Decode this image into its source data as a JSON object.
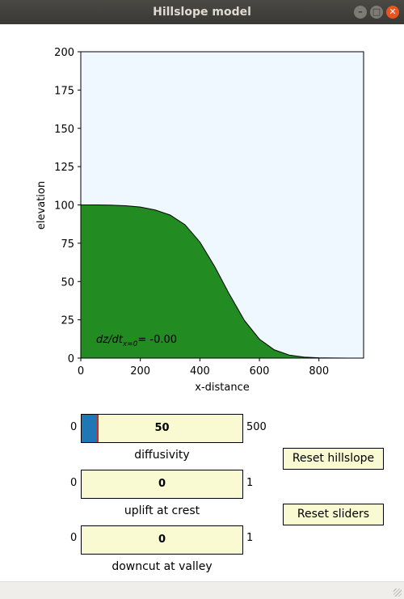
{
  "window": {
    "title": "Hillslope model",
    "controls": {
      "minimize": "–",
      "maximize": "□",
      "close": "✕"
    }
  },
  "chart_data": {
    "type": "area",
    "xlabel": "x-distance",
    "ylabel": "elevation",
    "xlim": [
      0,
      950
    ],
    "ylim": [
      0,
      200
    ],
    "xticks": [
      0,
      200,
      400,
      600,
      800
    ],
    "yticks": [
      0,
      25,
      50,
      75,
      100,
      125,
      150,
      175,
      200
    ],
    "x": [
      0,
      50,
      100,
      150,
      200,
      250,
      300,
      350,
      400,
      450,
      500,
      550,
      600,
      650,
      700,
      750,
      800,
      850,
      900,
      950
    ],
    "y": [
      100,
      100,
      99.9,
      99.5,
      98.6,
      96.7,
      93.4,
      87.1,
      75.8,
      59.7,
      41.4,
      24.5,
      12.4,
      5.4,
      2.0,
      0.65,
      0.18,
      0.04,
      0.01,
      0
    ],
    "fill_color": "#228b22",
    "background_color": "#f0f8ff",
    "grid": false,
    "annotation": {
      "prefix": "dz/dt",
      "subscript": "x=0",
      "value": "= -0.00"
    }
  },
  "sliders": [
    {
      "label": "diffusivity",
      "min": "0",
      "max": "500",
      "value": "50",
      "fraction": 0.1
    },
    {
      "label": "uplift at crest",
      "min": "0",
      "max": "1",
      "value": "0",
      "fraction": 0
    },
    {
      "label": "downcut at valley",
      "min": "0",
      "max": "1",
      "value": "0",
      "fraction": 0
    }
  ],
  "buttons": {
    "reset_hillslope": "Reset hillslope",
    "reset_sliders": "Reset sliders"
  },
  "colors": {
    "slider_fill": "#1f77b4",
    "slider_handle": "#d62728",
    "widget_bg": "#fafad2"
  }
}
